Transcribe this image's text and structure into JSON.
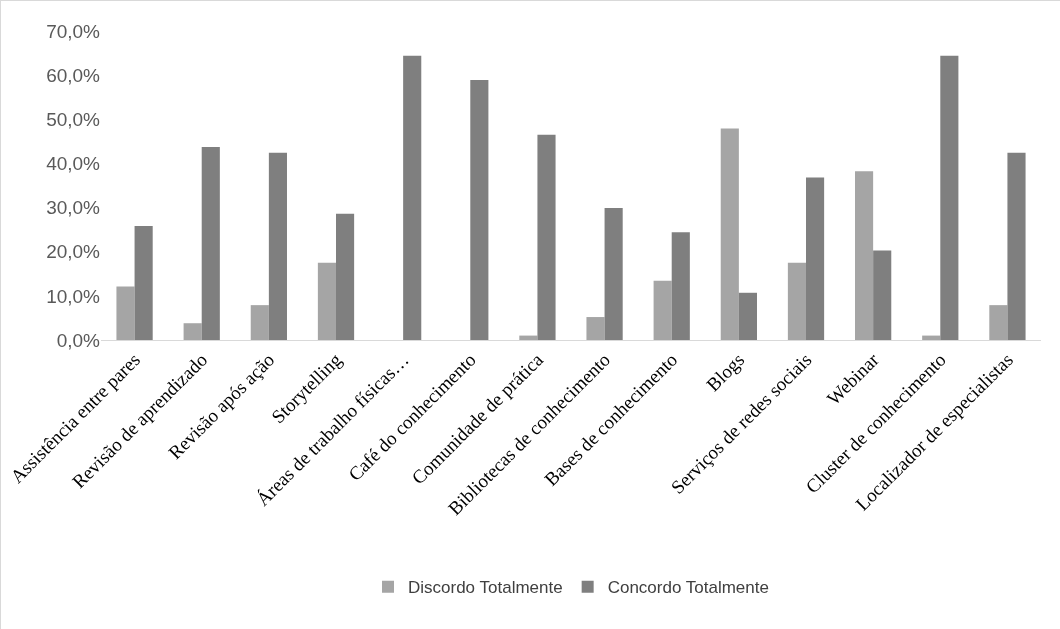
{
  "chart_data": {
    "type": "bar",
    "categories": [
      "Assistência entre pares",
      "Revisão de aprendizado",
      "Revisão após ação",
      "Storytelling",
      "Áreas de trabalho físicas…",
      "Café do conhecimento",
      "Comunidade de prática",
      "Bibliotecas de conhecimento",
      "Bases de conhecimento",
      "Blogs",
      "Serviços de redes sociais",
      "Webinar",
      "Cluster de conhecimento",
      "Localizador de especialistas"
    ],
    "series": [
      {
        "name": "Discordo Totalmente",
        "color": "#a5a5a5",
        "values": [
          12.1,
          3.8,
          7.9,
          17.5,
          0,
          0,
          1.0,
          5.2,
          13.4,
          47.9,
          17.5,
          38.2,
          1.0,
          7.9
        ]
      },
      {
        "name": "Concordo Totalmente",
        "color": "#7f7f7f",
        "values": [
          25.8,
          43.7,
          42.4,
          28.6,
          64.4,
          58.9,
          46.5,
          29.9,
          24.4,
          10.7,
          36.8,
          20.3,
          64.4,
          42.4
        ]
      }
    ],
    "ylim": [
      0,
      70
    ],
    "yticks": [
      {
        "value": 0,
        "label": "0,0%"
      },
      {
        "value": 10,
        "label": "10,0%"
      },
      {
        "value": 20,
        "label": "20,0%"
      },
      {
        "value": 30,
        "label": "30,0%"
      },
      {
        "value": 40,
        "label": "40,0%"
      },
      {
        "value": 50,
        "label": "50,0%"
      },
      {
        "value": 60,
        "label": "60,0%"
      },
      {
        "value": 70,
        "label": "70,0%"
      }
    ],
    "grid": false,
    "legend": "bottom"
  }
}
